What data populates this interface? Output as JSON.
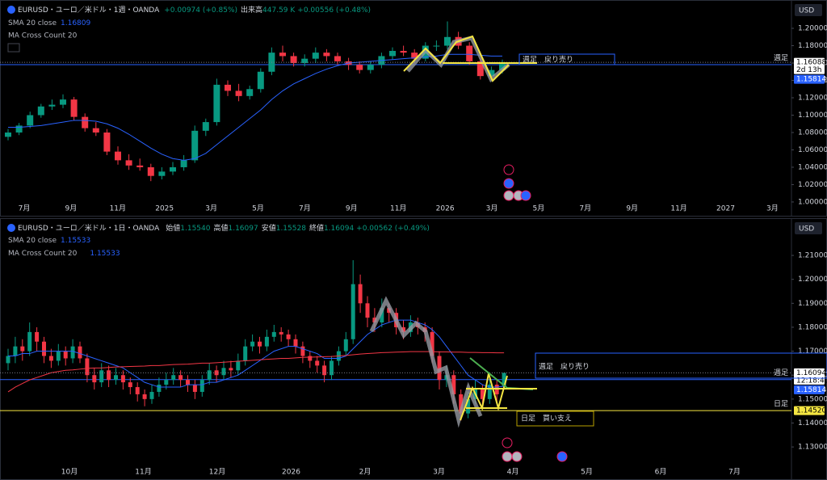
{
  "chart_data": [
    {
      "type": "candlestick",
      "title": "EURUSD・ユーロ／米ドル・1週・OANDA",
      "change": "+0.00974 (+0.85%)",
      "volume_label": "出来高",
      "volume": "447.59 K",
      "volume_change": "+0.00556 (+0.48%)",
      "indicators": [
        {
          "name": "SMA 20 close",
          "value": "1.16809"
        },
        {
          "name": "MA Cross Count 20"
        }
      ],
      "currency": "USD",
      "up_color": "#089981",
      "down_color": "#f23645",
      "candles": [
        [
          1.075,
          1.084,
          1.071,
          1.08
        ],
        [
          1.08,
          1.091,
          1.077,
          1.088
        ],
        [
          1.088,
          1.104,
          1.085,
          1.1
        ],
        [
          1.1,
          1.113,
          1.097,
          1.11
        ],
        [
          1.11,
          1.118,
          1.106,
          1.112
        ],
        [
          1.112,
          1.124,
          1.108,
          1.118
        ],
        [
          1.118,
          1.121,
          1.094,
          1.098
        ],
        [
          1.098,
          1.102,
          1.081,
          1.085
        ],
        [
          1.085,
          1.092,
          1.076,
          1.08
        ],
        [
          1.08,
          1.084,
          1.054,
          1.058
        ],
        [
          1.058,
          1.064,
          1.043,
          1.048
        ],
        [
          1.048,
          1.055,
          1.037,
          1.042
        ],
        [
          1.042,
          1.05,
          1.036,
          1.04
        ],
        [
          1.04,
          1.044,
          1.024,
          1.03
        ],
        [
          1.03,
          1.04,
          1.026,
          1.035
        ],
        [
          1.035,
          1.046,
          1.031,
          1.04
        ],
        [
          1.04,
          1.054,
          1.036,
          1.048
        ],
        [
          1.048,
          1.088,
          1.045,
          1.082
        ],
        [
          1.082,
          1.096,
          1.076,
          1.092
        ],
        [
          1.092,
          1.142,
          1.088,
          1.135
        ],
        [
          1.135,
          1.14,
          1.122,
          1.128
        ],
        [
          1.128,
          1.136,
          1.116,
          1.122
        ],
        [
          1.122,
          1.134,
          1.118,
          1.13
        ],
        [
          1.13,
          1.154,
          1.126,
          1.15
        ],
        [
          1.15,
          1.178,
          1.146,
          1.172
        ],
        [
          1.172,
          1.18,
          1.162,
          1.168
        ],
        [
          1.168,
          1.172,
          1.156,
          1.16
        ],
        [
          1.16,
          1.17,
          1.156,
          1.165
        ],
        [
          1.165,
          1.178,
          1.16,
          1.172
        ],
        [
          1.172,
          1.176,
          1.162,
          1.168
        ],
        [
          1.168,
          1.172,
          1.158,
          1.162
        ],
        [
          1.162,
          1.166,
          1.152,
          1.158
        ],
        [
          1.158,
          1.162,
          1.148,
          1.152
        ],
        [
          1.152,
          1.162,
          1.148,
          1.158
        ],
        [
          1.158,
          1.172,
          1.154,
          1.168
        ],
        [
          1.168,
          1.178,
          1.164,
          1.174
        ],
        [
          1.174,
          1.18,
          1.168,
          1.172
        ],
        [
          1.172,
          1.176,
          1.16,
          1.165
        ],
        [
          1.165,
          1.184,
          1.162,
          1.18
        ],
        [
          1.18,
          1.186,
          1.174,
          1.18
        ],
        [
          1.18,
          1.208,
          1.176,
          1.19
        ],
        [
          1.19,
          1.196,
          1.176,
          1.18
        ],
        [
          1.18,
          1.184,
          1.158,
          1.162
        ],
        [
          1.162,
          1.166,
          1.141,
          1.145
        ],
        [
          1.145,
          1.156,
          1.14,
          1.152
        ],
        [
          1.152,
          1.164,
          1.148,
          1.16088
        ]
      ],
      "series": [
        {
          "name": "SMA 20 close",
          "color": "#2962ff",
          "values": [
            1.086,
            1.086,
            1.087,
            1.088,
            1.09,
            1.092,
            1.094,
            1.094,
            1.093,
            1.09,
            1.085,
            1.078,
            1.07,
            1.062,
            1.055,
            1.05,
            1.048,
            1.05,
            1.056,
            1.066,
            1.076,
            1.086,
            1.096,
            1.106,
            1.118,
            1.128,
            1.136,
            1.142,
            1.148,
            1.153,
            1.157,
            1.16,
            1.161,
            1.162,
            1.163,
            1.164,
            1.165,
            1.166,
            1.167,
            1.168,
            1.17,
            1.17,
            1.17,
            1.169,
            1.168,
            1.16809
          ]
        }
      ],
      "time_labels": [
        "7月",
        "9月",
        "11月",
        "2025",
        "3月",
        "5月",
        "7月",
        "9月",
        "11月",
        "2026",
        "3月",
        "5月",
        "7月",
        "9月",
        "11月",
        "2027",
        "3月"
      ],
      "ylim": [
        0.9925,
        1.214
      ],
      "yticks": [
        {
          "value": 1.0,
          "label": "1.00000"
        },
        {
          "value": 1.02,
          "label": "1.02000"
        },
        {
          "value": 1.04,
          "label": "1.04000"
        },
        {
          "value": 1.06,
          "label": "1.06000"
        },
        {
          "value": 1.08,
          "label": "1.08000"
        },
        {
          "value": 1.1,
          "label": "1.10000"
        },
        {
          "value": 1.12,
          "label": "1.12000"
        },
        {
          "value": 1.14,
          "label": "1.14000"
        },
        {
          "value": 1.16,
          "label": "1.16000"
        },
        {
          "value": 1.18,
          "label": "1.18000"
        },
        {
          "value": 1.2,
          "label": "1.20000"
        }
      ],
      "grid": false,
      "hlines": [
        {
          "name": "週足",
          "value": 1.15814,
          "color": "#2962ff"
        }
      ],
      "price_labels": [
        {
          "value": 1.16088,
          "label": "1.16088",
          "sub": "2d 13h",
          "color": "#ffffff",
          "text_color": "#000000"
        },
        {
          "value": 1.15814,
          "label": "1.15814",
          "color": "#2962ff",
          "text_color": "#ffffff"
        }
      ],
      "annotations": [
        "週足　戻り売り"
      ]
    },
    {
      "type": "candlestick",
      "title": "EURUSD・ユーロ／米ドル・1日・OANDA",
      "ohlc": [
        {
          "name": "始値",
          "value": "1.15540"
        },
        {
          "name": "高値",
          "value": "1.16097"
        },
        {
          "name": "安値",
          "value": "1.15528"
        },
        {
          "name": "終値",
          "value": "1.16094"
        }
      ],
      "change": "+0.00562 (+0.49%)",
      "indicators": [
        {
          "name": "SMA 20 close",
          "value": "1.15533"
        },
        {
          "name": "MA Cross Count 20",
          "value": "1.15533"
        }
      ],
      "currency": "USD",
      "up_color": "#089981",
      "down_color": "#f23645",
      "candles": [
        [
          1.165,
          1.171,
          1.162,
          1.168
        ],
        [
          1.168,
          1.176,
          1.165,
          1.172
        ],
        [
          1.172,
          1.175,
          1.166,
          1.17
        ],
        [
          1.17,
          1.182,
          1.168,
          1.178
        ],
        [
          1.178,
          1.18,
          1.17,
          1.174
        ],
        [
          1.174,
          1.176,
          1.165,
          1.168
        ],
        [
          1.168,
          1.171,
          1.163,
          1.166
        ],
        [
          1.166,
          1.173,
          1.164,
          1.17
        ],
        [
          1.17,
          1.172,
          1.164,
          1.167
        ],
        [
          1.167,
          1.175,
          1.165,
          1.172
        ],
        [
          1.172,
          1.174,
          1.165,
          1.167
        ],
        [
          1.167,
          1.169,
          1.157,
          1.16
        ],
        [
          1.16,
          1.163,
          1.154,
          1.157
        ],
        [
          1.157,
          1.165,
          1.155,
          1.162
        ],
        [
          1.162,
          1.164,
          1.155,
          1.158
        ],
        [
          1.158,
          1.163,
          1.156,
          1.16
        ],
        [
          1.16,
          1.162,
          1.154,
          1.157
        ],
        [
          1.157,
          1.159,
          1.152,
          1.155
        ],
        [
          1.155,
          1.157,
          1.149,
          1.152
        ],
        [
          1.152,
          1.154,
          1.147,
          1.15
        ],
        [
          1.15,
          1.156,
          1.148,
          1.153
        ],
        [
          1.153,
          1.159,
          1.151,
          1.156
        ],
        [
          1.156,
          1.161,
          1.154,
          1.158
        ],
        [
          1.158,
          1.163,
          1.156,
          1.16
        ],
        [
          1.16,
          1.162,
          1.155,
          1.158
        ],
        [
          1.158,
          1.16,
          1.153,
          1.156
        ],
        [
          1.156,
          1.158,
          1.15,
          1.153
        ],
        [
          1.153,
          1.16,
          1.151,
          1.158
        ],
        [
          1.158,
          1.165,
          1.156,
          1.162
        ],
        [
          1.162,
          1.164,
          1.157,
          1.16
        ],
        [
          1.16,
          1.166,
          1.158,
          1.163
        ],
        [
          1.163,
          1.166,
          1.159,
          1.162
        ],
        [
          1.162,
          1.169,
          1.16,
          1.166
        ],
        [
          1.166,
          1.175,
          1.164,
          1.172
        ],
        [
          1.172,
          1.177,
          1.17,
          1.174
        ],
        [
          1.174,
          1.176,
          1.169,
          1.172
        ],
        [
          1.172,
          1.179,
          1.17,
          1.176
        ],
        [
          1.176,
          1.181,
          1.174,
          1.178
        ],
        [
          1.178,
          1.18,
          1.174,
          1.177
        ],
        [
          1.177,
          1.179,
          1.172,
          1.175
        ],
        [
          1.175,
          1.177,
          1.169,
          1.172
        ],
        [
          1.172,
          1.174,
          1.165,
          1.168
        ],
        [
          1.168,
          1.17,
          1.163,
          1.166
        ],
        [
          1.166,
          1.168,
          1.161,
          1.164
        ],
        [
          1.164,
          1.166,
          1.157,
          1.16
        ],
        [
          1.16,
          1.168,
          1.158,
          1.166
        ],
        [
          1.166,
          1.172,
          1.164,
          1.17
        ],
        [
          1.17,
          1.178,
          1.168,
          1.175
        ],
        [
          1.175,
          1.208,
          1.173,
          1.198
        ],
        [
          1.198,
          1.202,
          1.186,
          1.19
        ],
        [
          1.19,
          1.193,
          1.18,
          1.184
        ],
        [
          1.184,
          1.188,
          1.178,
          1.182
        ],
        [
          1.182,
          1.192,
          1.18,
          1.188
        ],
        [
          1.188,
          1.19,
          1.182,
          1.186
        ],
        [
          1.186,
          1.188,
          1.177,
          1.18
        ],
        [
          1.18,
          1.183,
          1.175,
          1.178
        ],
        [
          1.178,
          1.185,
          1.176,
          1.182
        ],
        [
          1.182,
          1.184,
          1.177,
          1.18
        ],
        [
          1.18,
          1.182,
          1.174,
          1.178
        ],
        [
          1.178,
          1.18,
          1.165,
          1.168
        ],
        [
          1.168,
          1.17,
          1.154,
          1.158
        ],
        [
          1.158,
          1.164,
          1.155,
          1.16
        ],
        [
          1.16,
          1.162,
          1.148,
          1.152
        ],
        [
          1.152,
          1.154,
          1.141,
          1.144
        ],
        [
          1.144,
          1.153,
          1.142,
          1.15
        ],
        [
          1.15,
          1.158,
          1.148,
          1.154
        ],
        [
          1.154,
          1.156,
          1.146,
          1.15
        ],
        [
          1.15,
          1.159,
          1.148,
          1.156
        ],
        [
          1.156,
          1.158,
          1.149,
          1.152
        ],
        [
          1.1554,
          1.16097,
          1.15528,
          1.16094
        ]
      ],
      "series": [
        {
          "name": "SMA 20 close",
          "color": "#2962ff",
          "values": [
            1.168,
            1.168,
            1.169,
            1.169,
            1.17,
            1.17,
            1.17,
            1.17,
            1.17,
            1.17,
            1.169,
            1.168,
            1.167,
            1.166,
            1.165,
            1.164,
            1.163,
            1.161,
            1.159,
            1.157,
            1.156,
            1.155,
            1.155,
            1.155,
            1.155,
            1.156,
            1.156,
            1.156,
            1.157,
            1.157,
            1.158,
            1.159,
            1.16,
            1.162,
            1.164,
            1.166,
            1.168,
            1.17,
            1.171,
            1.172,
            1.172,
            1.171,
            1.17,
            1.169,
            1.167,
            1.167,
            1.167,
            1.168,
            1.171,
            1.174,
            1.177,
            1.179,
            1.181,
            1.182,
            1.183,
            1.183,
            1.183,
            1.182,
            1.181,
            1.179,
            1.176,
            1.172,
            1.168,
            1.164,
            1.16,
            1.158,
            1.156,
            1.155,
            1.155,
            1.15533
          ]
        },
        {
          "color": "#f23645",
          "values": [
            1.153,
            1.155,
            1.1565,
            1.158,
            1.159,
            1.16,
            1.161,
            1.1615,
            1.162,
            1.1622,
            1.1625,
            1.1628,
            1.163,
            1.163,
            1.1632,
            1.1634,
            1.1635,
            1.1636,
            1.1637,
            1.1638,
            1.164,
            1.164,
            1.1642,
            1.1644,
            1.1645,
            1.1646,
            1.1648,
            1.165,
            1.165,
            1.1652,
            1.1654,
            1.1656,
            1.1658,
            1.166,
            1.1662,
            1.1664,
            1.1666,
            1.1668,
            1.167,
            1.167,
            1.1672,
            1.1674,
            1.1675,
            1.1676,
            1.1677,
            1.1678,
            1.168,
            1.1682,
            1.1685,
            1.1688,
            1.169,
            1.1692,
            1.1694,
            1.1695,
            1.1696,
            1.1697,
            1.1698,
            1.1698,
            1.1698,
            1.1698,
            1.1697,
            1.1697,
            1.1696,
            1.1696,
            1.1695,
            1.1695,
            1.1694,
            1.1694,
            1.1693,
            1.1693
          ]
        }
      ],
      "time_labels": [
        "10月",
        "11月",
        "12月",
        "2026",
        "2月",
        "3月",
        "4月",
        "5月",
        "6月",
        "7月"
      ],
      "ylim": [
        1.1243,
        1.2188
      ],
      "yticks": [
        {
          "value": 1.13,
          "label": "1.13000"
        },
        {
          "value": 1.14,
          "label": "1.14000"
        },
        {
          "value": 1.15,
          "label": "1.15000"
        },
        {
          "value": 1.16,
          "label": "1.16000"
        },
        {
          "value": 1.17,
          "label": "1.17000"
        },
        {
          "value": 1.18,
          "label": "1.18000"
        },
        {
          "value": 1.19,
          "label": "1.19000"
        },
        {
          "value": 1.2,
          "label": "1.20000"
        },
        {
          "value": 1.21,
          "label": "1.21000"
        }
      ],
      "grid": false,
      "hlines": [
        {
          "name": "週足",
          "value": 1.15814,
          "color": "#2962ff"
        },
        {
          "name": "日足",
          "value": 1.1452,
          "color": "#f5e642"
        }
      ],
      "price_labels": [
        {
          "value": 1.16094,
          "label": "1.16094",
          "sub": "12:18:40",
          "color": "#ffffff",
          "text_color": "#000000"
        },
        {
          "value": 1.15814,
          "label": "1.15814",
          "color": "#2962ff",
          "text_color": "#ffffff"
        },
        {
          "value": 1.1452,
          "label": "1.14520",
          "color": "#f5e642",
          "text_color": "#000000"
        }
      ],
      "annotations": [
        "週足　戻り売り",
        "日足　買い支え"
      ]
    }
  ]
}
